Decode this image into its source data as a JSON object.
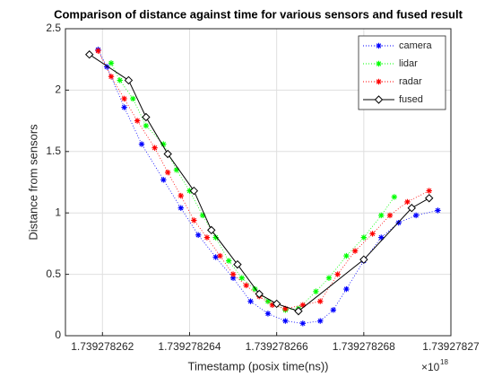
{
  "chart_data": {
    "type": "line",
    "title": "Comparison of distance against time for various sensors and fused result",
    "x_label": "Timestamp (posix time(ns))",
    "y_label": "Distance from sensors",
    "x_multiplier_label": "×10",
    "x_multiplier_exponent": "18",
    "xlim": [
      1.73927826115,
      1.73927827
    ],
    "ylim": [
      0,
      2.5
    ],
    "xticks": [
      1.739278262,
      1.739278264,
      1.739278266,
      1.739278268,
      1.73927827
    ],
    "yticks": [
      0,
      0.5,
      1,
      1.5,
      2,
      2.5
    ],
    "grid": true,
    "legend": "top-right",
    "series": [
      {
        "name": "camera",
        "color": "#0000ff",
        "marker": "star",
        "line": "dotted",
        "x": [
          1.7392782619,
          1.7392782621,
          1.7392782625,
          1.7392782629,
          1.7392782634,
          1.7392782638,
          1.7392782642,
          1.7392782646,
          1.739278265,
          1.7392782654,
          1.7392782658,
          1.7392782662,
          1.7392782666,
          1.739278267,
          1.7392782673,
          1.7392782676,
          1.739278268,
          1.7392782684,
          1.7392782688,
          1.7392782692,
          1.7392782697
        ],
        "values": [
          2.33,
          2.19,
          1.86,
          1.56,
          1.27,
          1.04,
          0.82,
          0.64,
          0.47,
          0.28,
          0.18,
          0.12,
          0.1,
          0.12,
          0.21,
          0.38,
          0.61,
          0.8,
          0.92,
          0.98,
          1.02
        ]
      },
      {
        "name": "lidar",
        "color": "#00ff00",
        "marker": "star",
        "line": "dotted",
        "x": [
          1.7392782622,
          1.7392782624,
          1.7392782627,
          1.739278263,
          1.7392782634,
          1.7392782637,
          1.739278264,
          1.7392782643,
          1.7392782646,
          1.7392782649,
          1.7392782652,
          1.7392782655,
          1.7392782658,
          1.7392782662,
          1.7392782665,
          1.7392782669,
          1.7392782672,
          1.7392782676,
          1.739278268,
          1.7392782684,
          1.7392782687
        ],
        "values": [
          2.22,
          2.08,
          1.93,
          1.71,
          1.56,
          1.35,
          1.18,
          0.98,
          0.8,
          0.61,
          0.47,
          0.38,
          0.28,
          0.21,
          0.22,
          0.36,
          0.47,
          0.65,
          0.8,
          0.98,
          1.13
        ]
      },
      {
        "name": "radar",
        "color": "#ff0000",
        "marker": "star",
        "line": "dotted",
        "x": [
          1.7392782619,
          1.7392782622,
          1.7392782625,
          1.7392782628,
          1.7392782632,
          1.7392782635,
          1.7392782638,
          1.7392782641,
          1.7392782644,
          1.7392782647,
          1.739278265,
          1.7392782653,
          1.7392782656,
          1.7392782659,
          1.7392782662,
          1.7392782666,
          1.739278267,
          1.7392782674,
          1.7392782678,
          1.7392782682,
          1.7392782686,
          1.739278269,
          1.7392782695
        ],
        "values": [
          2.32,
          2.11,
          1.93,
          1.75,
          1.53,
          1.33,
          1.14,
          0.94,
          0.8,
          0.65,
          0.5,
          0.41,
          0.32,
          0.25,
          0.22,
          0.25,
          0.28,
          0.5,
          0.69,
          0.83,
          0.98,
          1.09,
          1.18
        ]
      },
      {
        "name": "fused",
        "color": "#000000",
        "marker": "diamond",
        "line": "solid",
        "x": [
          1.7392782617,
          1.7392782626,
          1.739278263,
          1.7392782635,
          1.7392782641,
          1.7392782645,
          1.7392782651,
          1.7392782656,
          1.739278266,
          1.7392782665,
          1.739278268,
          1.7392782691,
          1.7392782695
        ],
        "values": [
          2.29,
          2.08,
          1.78,
          1.48,
          1.18,
          0.86,
          0.58,
          0.34,
          0.26,
          0.2,
          0.62,
          1.04,
          1.12
        ]
      }
    ]
  }
}
